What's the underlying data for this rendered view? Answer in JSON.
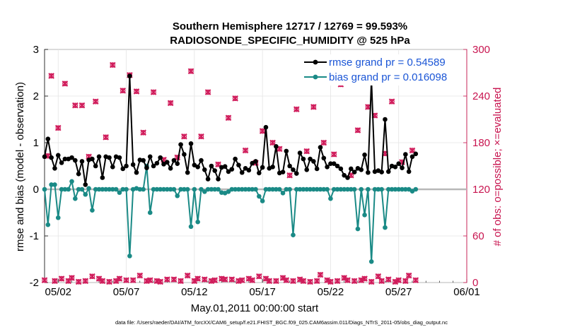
{
  "chart_data": {
    "type": "line",
    "title": "Southern Hemisphere 12717 / 12769 = 99.593%",
    "subtitle": "RADIOSONDE_SPECIFIC_HUMIDITY @ 525 hPa",
    "xlabel": "May.01,2011 00:00:00 start",
    "ylabel": "rmse and bias (model - observation)",
    "y2label": "# of obs: o=possible; ×=evaluated",
    "footer": "data file: /Users/raeder/DAI/ATM_forcXX/CAM6_setup/f.e21.FHIST_BGC.f09_025.CAM6assim.011/Diags_NTrS_2011-05/obs_diag_output.nc",
    "xlim": [
      1,
      32
    ],
    "ylim": [
      -2,
      3
    ],
    "y2lim": [
      0,
      300
    ],
    "x_ticks": [
      2,
      7,
      12,
      17,
      22,
      27,
      32
    ],
    "x_tick_labels": [
      "05/02",
      "05/07",
      "05/12",
      "05/17",
      "05/22",
      "05/27",
      "06/01"
    ],
    "y_ticks": [
      -2,
      -1,
      0,
      1,
      2,
      3
    ],
    "y_tick_labels": [
      "-2",
      "-1",
      "0",
      "1",
      "2",
      "3"
    ],
    "y2_ticks": [
      0,
      60,
      120,
      180,
      240,
      300
    ],
    "y2_tick_labels": [
      "0",
      "60",
      "120",
      "180",
      "240",
      "300"
    ],
    "x_step": 0.25,
    "x_start": 1.0,
    "series": [
      {
        "name": "rmse grand pr = 0.54589",
        "color": "#000000",
        "axis": "left",
        "values": [
          0.7,
          1.08,
          0.68,
          0.45,
          0.73,
          0.57,
          0.65,
          0.65,
          0.68,
          0.62,
          0.33,
          0.6,
          0.1,
          0.63,
          0.65,
          0.5,
          0.7,
          0.25,
          0.7,
          0.68,
          0.48,
          0.7,
          0.68,
          0.44,
          0.5,
          2.43,
          0.53,
          0.36,
          0.63,
          0.62,
          0.46,
          0.7,
          0.5,
          0.56,
          0.68,
          0.54,
          0.58,
          0.45,
          0.62,
          0.55,
          0.96,
          0.75,
          0.36,
          0.98,
          0.52,
          0.48,
          0.62,
          0.42,
          0.22,
          0.5,
          0.4,
          0.22,
          0.47,
          0.49,
          0.38,
          0.43,
          0.65,
          0.52,
          0.36,
          0.45,
          0.41,
          0.56,
          0.6,
          0.35,
          0.47,
          1.33,
          0.45,
          0.48,
          0.92,
          0.35,
          0.37,
          0.82,
          0.5,
          0.42,
          0.34,
          0.78,
          0.65,
          0.42,
          0.65,
          0.6,
          0.44,
          0.9,
          0.67,
          0.48,
          0.55,
          0.55,
          0.5,
          0.44,
          0.3,
          0.25,
          0.44,
          0.37,
          0.45,
          0.42,
          0.74,
          0.36,
          2.35,
          0.38,
          0.4,
          0.37,
          1.5,
          0.38,
          0.5,
          0.48,
          0.55,
          0.46,
          0.75,
          0.38,
          0.7,
          0.76
        ]
      },
      {
        "name": "bias grand pr = 0.016098",
        "color": "#1a8a86",
        "axis": "left",
        "values": [
          0.0,
          -0.76,
          0.1,
          0.1,
          -0.61,
          0.0,
          0.0,
          0.0,
          0.17,
          -0.2,
          0.0,
          0.0,
          -0.11,
          0.02,
          -0.45,
          0.0,
          0.0,
          0.0,
          0.0,
          0.0,
          0.0,
          0.0,
          -0.07,
          0.0,
          0.0,
          -1.43,
          0.0,
          0.02,
          0.0,
          0.0,
          0.5,
          -0.5,
          0.0,
          0.0,
          0.0,
          0.0,
          0.0,
          0.0,
          0.0,
          -0.14,
          0.0,
          0.0,
          0.0,
          -0.8,
          0.0,
          -0.7,
          0.0,
          -0.05,
          0.0,
          0.0,
          0.0,
          0.0,
          -0.07,
          -0.08,
          -0.05,
          0.0,
          0.0,
          0.0,
          0.0,
          0.0,
          0.0,
          0.0,
          0.0,
          -0.15,
          -0.25,
          0.0,
          0.0,
          0.0,
          0.0,
          0.0,
          -0.08,
          0.0,
          0.0,
          -0.98,
          0.0,
          0.0,
          0.0,
          0.0,
          0.0,
          0.0,
          0.0,
          0.0,
          0.0,
          0.0,
          -0.2,
          0.0,
          0.0,
          0.0,
          0.0,
          0.0,
          0.0,
          0.0,
          -0.85,
          0.0,
          -0.55,
          0.0,
          -1.55,
          0.0,
          0.0,
          0.0,
          -0.82,
          0.0,
          0.0,
          0.0,
          0.0,
          0.0,
          0.0,
          0.0,
          -0.04,
          0.0
        ]
      },
      {
        "name": "# of obs evaluated",
        "color": "#d01c5b",
        "axis": "right",
        "marker": "x",
        "values": [
          3,
          163,
          266,
          2,
          199,
          5,
          256,
          2,
          6,
          228,
          1,
          228,
          2,
          162,
          8,
          233,
          5,
          2,
          187,
          1,
          280,
          2,
          5,
          247,
          3,
          267,
          3,
          246,
          9,
          193,
          2,
          3,
          245,
          2,
          1,
          158,
          4,
          231,
          4,
          161,
          2,
          188,
          9,
          272,
          2,
          5,
          188,
          4,
          245,
          2,
          3,
          152,
          5,
          4,
          212,
          4,
          237,
          2,
          3,
          170,
          5,
          3,
          154,
          8,
          195,
          5,
          2,
          180,
          2,
          172,
          6,
          3,
          138,
          2,
          223,
          4,
          2,
          169,
          1,
          226,
          2,
          10,
          180,
          3,
          1,
          165,
          2,
          255,
          6,
          3,
          138,
          2,
          196,
          3,
          5,
          226,
          1,
          215,
          8,
          2,
          166,
          4,
          233,
          1,
          3,
          155,
          2,
          9,
          170,
          3
        ]
      },
      {
        "name": "# of obs possible",
        "color": "#d01c5b",
        "axis": "right",
        "marker": "o",
        "values": [
          3,
          163,
          266,
          2,
          199,
          5,
          256,
          2,
          6,
          228,
          1,
          228,
          2,
          162,
          8,
          233,
          5,
          2,
          187,
          1,
          280,
          2,
          5,
          247,
          3,
          267,
          3,
          246,
          9,
          193,
          2,
          3,
          245,
          2,
          1,
          158,
          4,
          231,
          4,
          161,
          2,
          188,
          9,
          272,
          2,
          5,
          188,
          4,
          245,
          2,
          3,
          152,
          5,
          4,
          212,
          4,
          237,
          2,
          3,
          170,
          5,
          3,
          154,
          8,
          195,
          5,
          2,
          180,
          2,
          172,
          6,
          3,
          138,
          2,
          223,
          4,
          2,
          169,
          1,
          226,
          2,
          10,
          180,
          3,
          1,
          165,
          2,
          255,
          6,
          3,
          138,
          2,
          196,
          3,
          5,
          226,
          1,
          215,
          8,
          2,
          166,
          4,
          233,
          1,
          3,
          155,
          2,
          9,
          170,
          3
        ]
      }
    ],
    "legend_position": "top-right",
    "grid": true
  }
}
